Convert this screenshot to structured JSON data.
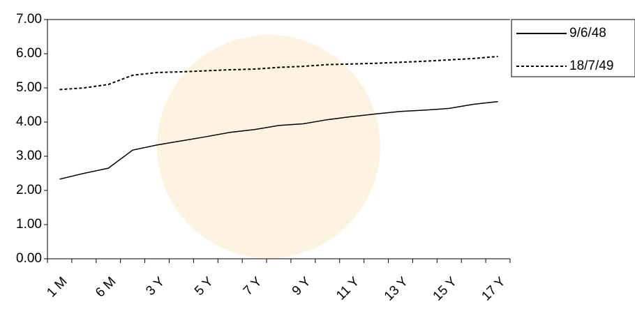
{
  "chart_data": {
    "type": "line",
    "categories": [
      "1 M",
      null,
      "6 M",
      null,
      "3 Y",
      null,
      "5 Y",
      null,
      "7 Y",
      null,
      "9 Y",
      null,
      "11 Y",
      null,
      "13 Y",
      null,
      "15 Y",
      null,
      "17 Y"
    ],
    "series": [
      {
        "name": "9/6/48",
        "color": "#000000",
        "dash": "solid",
        "values": [
          2.33,
          2.5,
          2.65,
          3.18,
          3.33,
          3.45,
          3.57,
          3.7,
          3.78,
          3.9,
          3.95,
          4.07,
          4.16,
          4.24,
          4.31,
          4.35,
          4.4,
          4.52,
          4.6
        ]
      },
      {
        "name": "18/7/49",
        "color": "#000000",
        "dash": "dotted",
        "values": [
          4.95,
          5.0,
          5.1,
          5.37,
          5.45,
          5.47,
          5.5,
          5.53,
          5.55,
          5.6,
          5.63,
          5.68,
          5.7,
          5.72,
          5.75,
          5.78,
          5.82,
          5.86,
          5.92
        ]
      }
    ],
    "ylim": [
      0,
      7
    ],
    "yticks": [
      {
        "value": 0,
        "label": "0.00"
      },
      {
        "value": 1,
        "label": "1.00"
      },
      {
        "value": 2,
        "label": "2.00"
      },
      {
        "value": 3,
        "label": "3.00"
      },
      {
        "value": 4,
        "label": "4.00"
      },
      {
        "value": 5,
        "label": "5.00"
      },
      {
        "value": 6,
        "label": "6.00"
      },
      {
        "value": 7,
        "label": "7.00"
      }
    ],
    "grid": false,
    "legend": "right"
  }
}
